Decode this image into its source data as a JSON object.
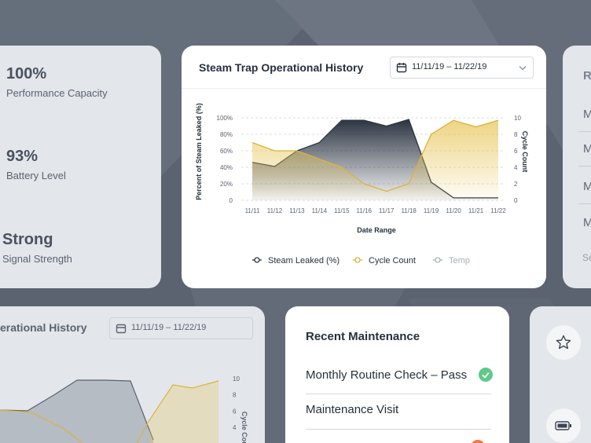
{
  "left_card": {
    "stats": [
      {
        "value": "100%",
        "label": "Performance Capacity"
      },
      {
        "value": "93%",
        "label": "Battery Level"
      },
      {
        "value": "Strong",
        "label": "Signal Strength"
      }
    ]
  },
  "right_card": {
    "items": [
      "R",
      "M",
      "M",
      "M",
      "M",
      "Se"
    ]
  },
  "chart_card": {
    "title": "Steam Trap Operational History",
    "date_range": "11/11/19 – 11/22/19"
  },
  "chart_data": {
    "type": "line",
    "x_label": "Date Range",
    "y_label": "Percent of Steam Leaked (%)",
    "y2_label": "Cycle Count",
    "categories": [
      "11/11",
      "11/12",
      "11/13",
      "11/14",
      "11/15",
      "11/16",
      "11/17",
      "11/18",
      "11/19",
      "11/20",
      "11/21",
      "11/22"
    ],
    "ylim": [
      0,
      100
    ],
    "yticks": [
      0,
      {
        "value": 20,
        "label": "20%"
      },
      {
        "value": 40,
        "label": "40%"
      },
      {
        "value": 60,
        "label": "60%"
      },
      {
        "value": 80,
        "label": "80%"
      },
      {
        "value": 100,
        "label": "100%"
      }
    ],
    "y2lim": [
      0,
      10
    ],
    "y2ticks": [
      0,
      2,
      4,
      6,
      8,
      10
    ],
    "grid": true,
    "series": [
      {
        "name": "Steam Leaked (%)",
        "color": "#2c3441",
        "values": [
          46,
          41,
          60,
          70,
          97,
          97,
          90,
          98,
          22,
          3,
          3,
          3
        ]
      },
      {
        "name": "Cycle Count",
        "color": "#d9b43a",
        "axis": "y2",
        "values": [
          7,
          6,
          6,
          5,
          4,
          2,
          1.1,
          2,
          8,
          9.7,
          8.9,
          9.7
        ]
      },
      {
        "name": "Temp",
        "color": "#a9b1bc",
        "values": [
          null,
          null,
          null,
          null,
          null,
          null,
          null,
          null,
          null,
          null,
          null,
          null
        ]
      }
    ]
  },
  "bottom_left_card": {
    "title": "erational History",
    "date_range": "11/11/19 – 11/22/19",
    "y2_label": "Cycle Count",
    "y2ticks": [
      10,
      8,
      6,
      4
    ]
  },
  "maintenance_card": {
    "title": "Recent Maintenance",
    "items": [
      "Monthly Routine Check – Pass",
      "Maintenance Visit"
    ]
  }
}
